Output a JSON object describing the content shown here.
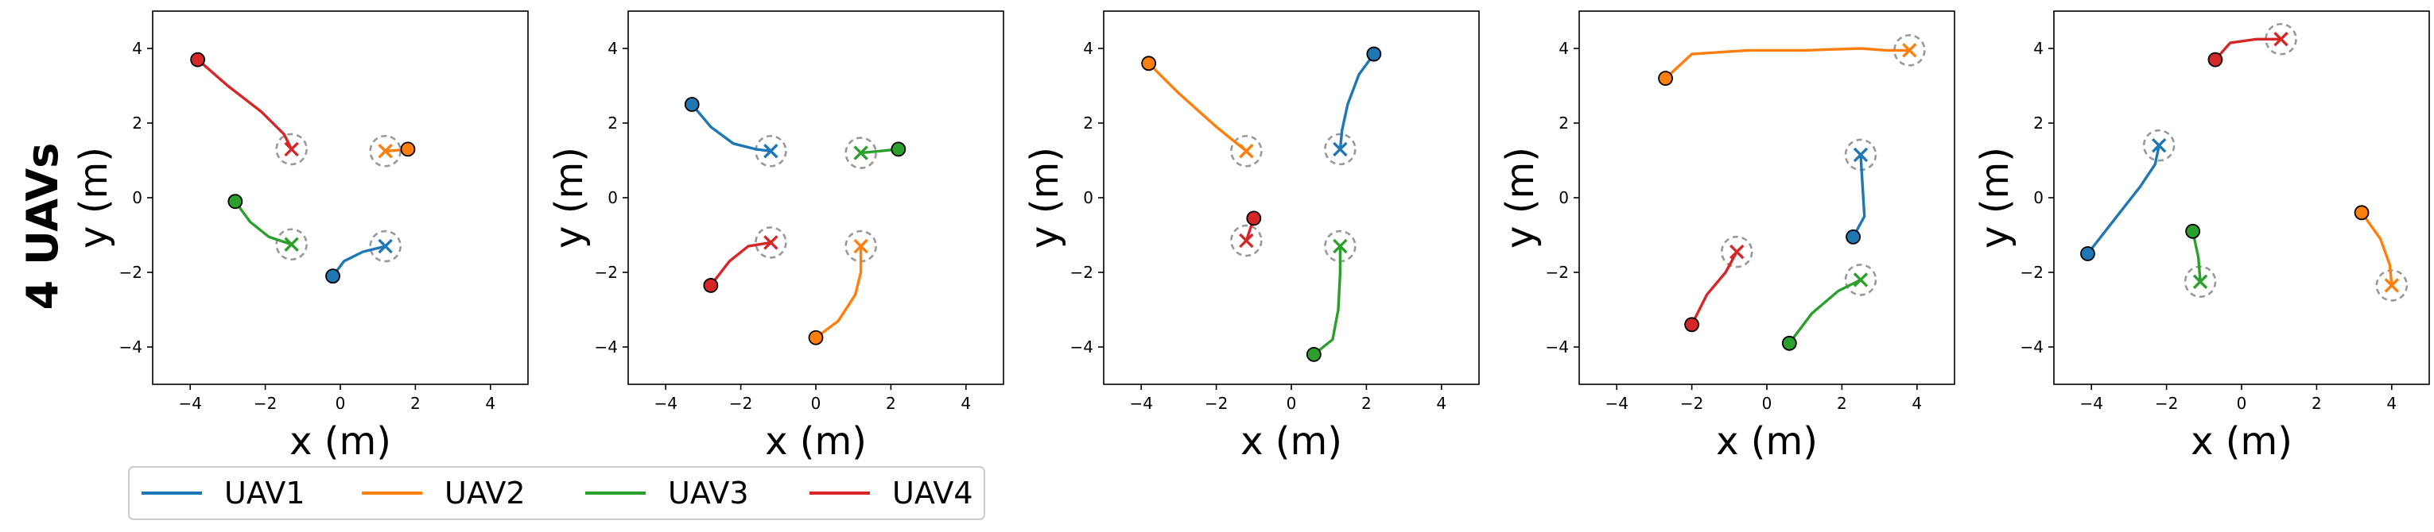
{
  "row_label": "4 UAVs",
  "colors": {
    "UAV1": "#1f77b4",
    "UAV2": "#ff7f0e",
    "UAV3": "#2ca02c",
    "UAV4": "#d62728",
    "goal_circle": "#999999"
  },
  "legend": {
    "entries": [
      "UAV1",
      "UAV2",
      "UAV3",
      "UAV4"
    ],
    "placement": "bottom-left"
  },
  "chart_data": [
    {
      "type": "line",
      "xlabel": "x (m)",
      "ylabel": "y (m)",
      "xlim": [
        -5,
        5
      ],
      "ylim": [
        -5,
        5
      ],
      "xticks": [
        -4,
        -2,
        0,
        2,
        4
      ],
      "yticks": [
        -4,
        -2,
        0,
        2,
        4
      ],
      "grid": false,
      "series": [
        {
          "name": "UAV1",
          "start": [
            -0.2,
            -2.1
          ],
          "goal": [
            1.2,
            -1.3
          ],
          "path": [
            [
              -0.2,
              -2.1
            ],
            [
              0.1,
              -1.7
            ],
            [
              0.6,
              -1.45
            ],
            [
              1.2,
              -1.3
            ]
          ]
        },
        {
          "name": "UAV2",
          "start": [
            1.8,
            1.3
          ],
          "goal": [
            1.2,
            1.25
          ],
          "path": [
            [
              1.8,
              1.3
            ],
            [
              1.5,
              1.27
            ],
            [
              1.2,
              1.25
            ]
          ]
        },
        {
          "name": "UAV3",
          "start": [
            -2.8,
            -0.1
          ],
          "goal": [
            -1.3,
            -1.25
          ],
          "path": [
            [
              -2.8,
              -0.1
            ],
            [
              -2.4,
              -0.65
            ],
            [
              -1.9,
              -1.05
            ],
            [
              -1.3,
              -1.25
            ]
          ]
        },
        {
          "name": "UAV4",
          "start": [
            -3.8,
            3.7
          ],
          "goal": [
            -1.3,
            1.3
          ],
          "path": [
            [
              -3.8,
              3.7
            ],
            [
              -3.0,
              3.0
            ],
            [
              -2.1,
              2.3
            ],
            [
              -1.5,
              1.7
            ],
            [
              -1.3,
              1.3
            ]
          ]
        }
      ]
    },
    {
      "type": "line",
      "xlabel": "x (m)",
      "ylabel": "y (m)",
      "xlim": [
        -5,
        5
      ],
      "ylim": [
        -5,
        5
      ],
      "xticks": [
        -4,
        -2,
        0,
        2,
        4
      ],
      "yticks": [
        -4,
        -2,
        0,
        2,
        4
      ],
      "grid": false,
      "series": [
        {
          "name": "UAV1",
          "start": [
            -3.3,
            2.5
          ],
          "goal": [
            -1.2,
            1.25
          ],
          "path": [
            [
              -3.3,
              2.5
            ],
            [
              -2.8,
              1.9
            ],
            [
              -2.2,
              1.45
            ],
            [
              -1.6,
              1.3
            ],
            [
              -1.2,
              1.25
            ]
          ]
        },
        {
          "name": "UAV2",
          "start": [
            0.0,
            -3.75
          ],
          "goal": [
            1.2,
            -1.3
          ],
          "path": [
            [
              0.0,
              -3.75
            ],
            [
              0.6,
              -3.3
            ],
            [
              1.05,
              -2.6
            ],
            [
              1.2,
              -2.0
            ],
            [
              1.2,
              -1.3
            ]
          ]
        },
        {
          "name": "UAV3",
          "start": [
            2.2,
            1.3
          ],
          "goal": [
            1.2,
            1.2
          ],
          "path": [
            [
              2.2,
              1.3
            ],
            [
              1.7,
              1.25
            ],
            [
              1.2,
              1.2
            ]
          ]
        },
        {
          "name": "UAV4",
          "start": [
            -2.8,
            -2.35
          ],
          "goal": [
            -1.2,
            -1.2
          ],
          "path": [
            [
              -2.8,
              -2.35
            ],
            [
              -2.3,
              -1.7
            ],
            [
              -1.8,
              -1.3
            ],
            [
              -1.2,
              -1.2
            ]
          ]
        }
      ]
    },
    {
      "type": "line",
      "xlabel": "x (m)",
      "ylabel": "y (m)",
      "xlim": [
        -5,
        5
      ],
      "ylim": [
        -5,
        5
      ],
      "xticks": [
        -4,
        -2,
        0,
        2,
        4
      ],
      "yticks": [
        -4,
        -2,
        0,
        2,
        4
      ],
      "grid": false,
      "series": [
        {
          "name": "UAV1",
          "start": [
            2.2,
            3.85
          ],
          "goal": [
            1.3,
            1.3
          ],
          "path": [
            [
              2.2,
              3.85
            ],
            [
              1.8,
              3.3
            ],
            [
              1.5,
              2.5
            ],
            [
              1.35,
              1.8
            ],
            [
              1.3,
              1.3
            ]
          ]
        },
        {
          "name": "UAV2",
          "start": [
            -3.8,
            3.6
          ],
          "goal": [
            -1.2,
            1.25
          ],
          "path": [
            [
              -3.8,
              3.6
            ],
            [
              -3.0,
              2.8
            ],
            [
              -2.0,
              1.9
            ],
            [
              -1.2,
              1.25
            ]
          ]
        },
        {
          "name": "UAV3",
          "start": [
            0.6,
            -4.2
          ],
          "goal": [
            1.3,
            -1.3
          ],
          "path": [
            [
              0.6,
              -4.2
            ],
            [
              1.1,
              -3.8
            ],
            [
              1.25,
              -3.0
            ],
            [
              1.3,
              -2.0
            ],
            [
              1.3,
              -1.3
            ]
          ]
        },
        {
          "name": "UAV4",
          "start": [
            -1.0,
            -0.55
          ],
          "goal": [
            -1.2,
            -1.15
          ],
          "path": [
            [
              -1.0,
              -0.55
            ],
            [
              -1.1,
              -0.85
            ],
            [
              -1.2,
              -1.15
            ]
          ]
        }
      ]
    },
    {
      "type": "line",
      "xlabel": "x (m)",
      "ylabel": "y (m)",
      "xlim": [
        -5,
        5
      ],
      "ylim": [
        -5,
        5
      ],
      "xticks": [
        -4,
        -2,
        0,
        2,
        4
      ],
      "yticks": [
        -4,
        -2,
        0,
        2,
        4
      ],
      "grid": false,
      "series": [
        {
          "name": "UAV1",
          "start": [
            2.3,
            -1.05
          ],
          "goal": [
            2.5,
            1.15
          ],
          "path": [
            [
              2.3,
              -1.05
            ],
            [
              2.6,
              -0.5
            ],
            [
              2.55,
              0.3
            ],
            [
              2.5,
              1.15
            ]
          ]
        },
        {
          "name": "UAV2",
          "start": [
            -2.7,
            3.2
          ],
          "goal": [
            3.8,
            3.95
          ],
          "path": [
            [
              -2.7,
              3.2
            ],
            [
              -2.0,
              3.85
            ],
            [
              -0.5,
              3.95
            ],
            [
              1.0,
              3.95
            ],
            [
              2.5,
              4.0
            ],
            [
              3.2,
              3.95
            ],
            [
              3.8,
              3.95
            ]
          ]
        },
        {
          "name": "UAV3",
          "start": [
            0.6,
            -3.9
          ],
          "goal": [
            2.5,
            -2.2
          ],
          "path": [
            [
              0.6,
              -3.9
            ],
            [
              1.2,
              -3.1
            ],
            [
              1.9,
              -2.5
            ],
            [
              2.5,
              -2.2
            ]
          ]
        },
        {
          "name": "UAV4",
          "start": [
            -2.0,
            -3.4
          ],
          "goal": [
            -0.8,
            -1.45
          ],
          "path": [
            [
              -2.0,
              -3.4
            ],
            [
              -1.6,
              -2.6
            ],
            [
              -1.1,
              -2.0
            ],
            [
              -0.8,
              -1.45
            ]
          ]
        }
      ]
    },
    {
      "type": "line",
      "xlabel": "x (m)",
      "ylabel": "y (m)",
      "xlim": [
        -5,
        5
      ],
      "ylim": [
        -5,
        5
      ],
      "xticks": [
        -4,
        -2,
        0,
        2,
        4
      ],
      "yticks": [
        -4,
        -2,
        0,
        2,
        4
      ],
      "grid": false,
      "series": [
        {
          "name": "UAV1",
          "start": [
            -4.1,
            -1.5
          ],
          "goal": [
            -2.2,
            1.4
          ],
          "path": [
            [
              -4.1,
              -1.5
            ],
            [
              -3.4,
              -0.6
            ],
            [
              -2.7,
              0.3
            ],
            [
              -2.3,
              0.9
            ],
            [
              -2.2,
              1.4
            ]
          ]
        },
        {
          "name": "UAV2",
          "start": [
            3.2,
            -0.4
          ],
          "goal": [
            4.0,
            -2.35
          ],
          "path": [
            [
              3.2,
              -0.4
            ],
            [
              3.7,
              -1.1
            ],
            [
              3.95,
              -1.8
            ],
            [
              4.0,
              -2.35
            ]
          ]
        },
        {
          "name": "UAV3",
          "start": [
            -1.3,
            -0.9
          ],
          "goal": [
            -1.1,
            -2.25
          ],
          "path": [
            [
              -1.3,
              -0.9
            ],
            [
              -1.15,
              -1.6
            ],
            [
              -1.1,
              -2.25
            ]
          ]
        },
        {
          "name": "UAV4",
          "start": [
            -0.7,
            3.7
          ],
          "goal": [
            1.05,
            4.25
          ],
          "path": [
            [
              -0.7,
              3.7
            ],
            [
              -0.3,
              4.15
            ],
            [
              0.4,
              4.25
            ],
            [
              1.05,
              4.25
            ]
          ]
        }
      ]
    }
  ]
}
